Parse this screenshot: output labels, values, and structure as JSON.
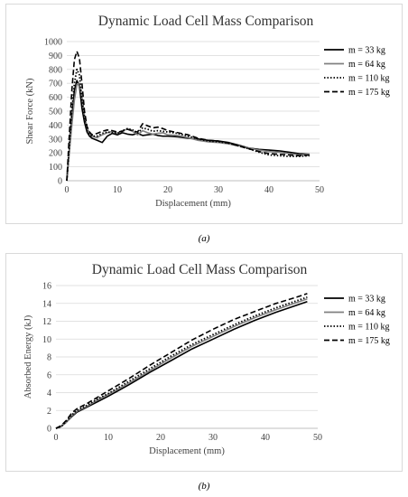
{
  "chart_data": [
    {
      "type": "line",
      "title": "Dynamic Load Cell Mass Comparison",
      "xlabel": "Displacement (mm)",
      "ylabel": "Shear Force (kN)",
      "xlim": [
        0,
        50
      ],
      "ylim": [
        0,
        1000
      ],
      "xticks": [
        "0",
        "10",
        "20",
        "30",
        "40",
        "50"
      ],
      "yticks": [
        "0",
        "100",
        "200",
        "300",
        "400",
        "500",
        "600",
        "700",
        "800",
        "900",
        "1000"
      ],
      "legend_position": "right",
      "series": [
        {
          "name": "m = 33 kg",
          "style": "solid",
          "color": "#000000",
          "x": [
            0,
            0.5,
            1,
            1.5,
            2,
            2.5,
            3,
            3.5,
            4,
            4.5,
            5,
            6,
            7,
            8,
            9,
            10,
            11,
            12,
            13,
            14,
            15,
            16,
            17,
            18,
            19,
            20,
            22,
            24,
            26,
            28,
            30,
            32,
            34,
            36,
            38,
            40,
            42,
            44,
            46,
            48
          ],
          "y": [
            0,
            220,
            450,
            650,
            720,
            680,
            520,
            420,
            350,
            320,
            305,
            290,
            275,
            320,
            340,
            330,
            345,
            335,
            330,
            340,
            325,
            330,
            335,
            325,
            320,
            320,
            315,
            305,
            300,
            290,
            285,
            275,
            255,
            235,
            225,
            220,
            215,
            205,
            195,
            190
          ]
        },
        {
          "name": "m = 64 kg",
          "style": "solid",
          "color": "#808080",
          "x": [
            0,
            0.5,
            1,
            1.5,
            2,
            2.5,
            3,
            3.5,
            4,
            4.5,
            5,
            6,
            7,
            8,
            9,
            10,
            11,
            12,
            13,
            14,
            15,
            16,
            17,
            18,
            19,
            20,
            22,
            24,
            26,
            28,
            30,
            32,
            34,
            36,
            38,
            40,
            42,
            44,
            46,
            48
          ],
          "y": [
            0,
            200,
            400,
            580,
            690,
            700,
            600,
            470,
            380,
            340,
            320,
            310,
            330,
            345,
            355,
            340,
            360,
            370,
            355,
            330,
            360,
            345,
            335,
            340,
            345,
            330,
            325,
            310,
            290,
            280,
            275,
            265,
            250,
            235,
            220,
            210,
            205,
            195,
            185,
            190
          ]
        },
        {
          "name": "m = 110 kg",
          "style": "dotted",
          "color": "#000000",
          "x": [
            0,
            0.5,
            1,
            1.5,
            2,
            2.5,
            3,
            3.5,
            4,
            4.5,
            5,
            6,
            7,
            8,
            9,
            10,
            11,
            12,
            13,
            14,
            15,
            16,
            17,
            18,
            19,
            20,
            22,
            24,
            26,
            28,
            30,
            32,
            34,
            36,
            38,
            40,
            42,
            44,
            46,
            48
          ],
          "y": [
            0,
            250,
            500,
            700,
            800,
            760,
            580,
            440,
            360,
            330,
            320,
            320,
            340,
            350,
            345,
            340,
            360,
            375,
            365,
            340,
            380,
            370,
            355,
            360,
            355,
            350,
            340,
            320,
            300,
            285,
            280,
            270,
            250,
            230,
            205,
            185,
            180,
            175,
            175,
            180
          ]
        },
        {
          "name": "m = 175 kg",
          "style": "dashed",
          "color": "#000000",
          "x": [
            0,
            0.5,
            1,
            1.5,
            2,
            2.5,
            3,
            3.5,
            4,
            4.5,
            5,
            6,
            7,
            8,
            9,
            10,
            11,
            12,
            13,
            14,
            15,
            16,
            17,
            18,
            19,
            20,
            22,
            24,
            26,
            28,
            30,
            32,
            34,
            36,
            38,
            40,
            42,
            44,
            46,
            48
          ],
          "y": [
            0,
            330,
            650,
            870,
            930,
            880,
            700,
            500,
            390,
            350,
            330,
            340,
            355,
            365,
            360,
            350,
            355,
            370,
            360,
            350,
            410,
            395,
            380,
            385,
            375,
            360,
            345,
            330,
            305,
            290,
            285,
            270,
            250,
            230,
            210,
            195,
            190,
            185,
            180,
            185
          ]
        }
      ]
    },
    {
      "type": "line",
      "title": "Dynamic Load Cell Mass Comparison",
      "xlabel": "Displacement (mm)",
      "ylabel": "Absorbed Energy (kJ)",
      "xlim": [
        0,
        50
      ],
      "ylim": [
        0,
        16
      ],
      "xticks": [
        "0",
        "10",
        "20",
        "30",
        "40",
        "50"
      ],
      "yticks": [
        "0",
        "2",
        "4",
        "6",
        "8",
        "10",
        "12",
        "14",
        "16"
      ],
      "legend_position": "right",
      "series": [
        {
          "name": "m = 33 kg",
          "style": "solid",
          "color": "#000000",
          "x": [
            0,
            1,
            2,
            3,
            4,
            6,
            8,
            10,
            14,
            18,
            22,
            26,
            30,
            34,
            38,
            42,
            46,
            48
          ],
          "y": [
            0,
            0.2,
            0.7,
            1.3,
            1.8,
            2.4,
            3.0,
            3.6,
            4.9,
            6.3,
            7.6,
            8.9,
            10.0,
            11.1,
            12.1,
            13.0,
            13.8,
            14.2
          ]
        },
        {
          "name": "m = 64 kg",
          "style": "solid",
          "color": "#808080",
          "x": [
            0,
            1,
            2,
            3,
            4,
            6,
            8,
            10,
            14,
            18,
            22,
            26,
            30,
            34,
            38,
            42,
            46,
            48
          ],
          "y": [
            0,
            0.2,
            0.7,
            1.4,
            1.9,
            2.5,
            3.2,
            3.8,
            5.1,
            6.5,
            7.9,
            9.2,
            10.3,
            11.4,
            12.4,
            13.3,
            14.1,
            14.5
          ]
        },
        {
          "name": "m = 110 kg",
          "style": "dotted",
          "color": "#000000",
          "x": [
            0,
            1,
            2,
            3,
            4,
            6,
            8,
            10,
            14,
            18,
            22,
            26,
            30,
            34,
            38,
            42,
            46,
            48
          ],
          "y": [
            0,
            0.2,
            0.8,
            1.5,
            2.0,
            2.6,
            3.3,
            3.9,
            5.3,
            6.7,
            8.1,
            9.4,
            10.5,
            11.6,
            12.6,
            13.5,
            14.3,
            14.7
          ]
        },
        {
          "name": "m = 175 kg",
          "style": "dashed",
          "color": "#000000",
          "x": [
            0,
            1,
            2,
            3,
            4,
            6,
            8,
            10,
            14,
            18,
            22,
            26,
            30,
            34,
            38,
            42,
            46,
            48
          ],
          "y": [
            0,
            0.3,
            0.9,
            1.7,
            2.2,
            2.8,
            3.5,
            4.2,
            5.6,
            7.1,
            8.5,
            9.9,
            11.1,
            12.2,
            13.1,
            14.0,
            14.7,
            15.1
          ]
        }
      ]
    }
  ],
  "captions": [
    "(a)",
    "(b)"
  ]
}
